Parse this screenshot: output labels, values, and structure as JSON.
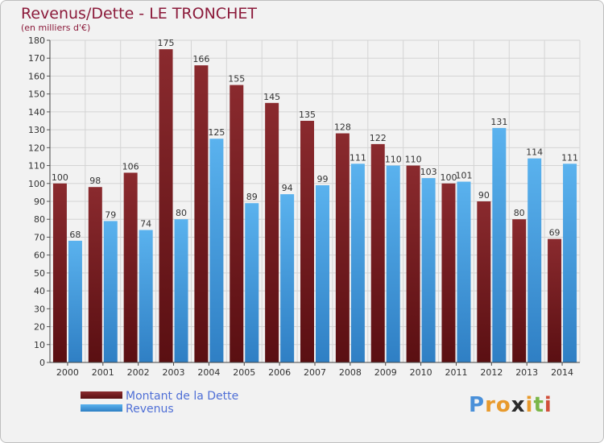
{
  "title": "Revenus/Dette - LE TRONCHET",
  "subtitle": "(en milliers d'€)",
  "colors": {
    "dette": "#7a1f23",
    "revenus": "#4aa3e6",
    "title": "#8b1a3a",
    "legend_text": "#4f6fd6"
  },
  "chart_data": {
    "type": "bar",
    "title": "Revenus/Dette - LE TRONCHET",
    "subtitle": "(en milliers d'€)",
    "categories": [
      "2000",
      "2001",
      "2002",
      "2003",
      "2004",
      "2005",
      "2006",
      "2007",
      "2008",
      "2009",
      "2010",
      "2011",
      "2012",
      "2013",
      "2014"
    ],
    "series": [
      {
        "name": "Montant de la Dette",
        "values": [
          100,
          98,
          106,
          175,
          166,
          155,
          145,
          135,
          128,
          122,
          110,
          100,
          90,
          80,
          69
        ]
      },
      {
        "name": "Revenus",
        "values": [
          68,
          79,
          74,
          80,
          125,
          89,
          94,
          99,
          111,
          110,
          103,
          101,
          131,
          114,
          111
        ]
      }
    ],
    "ylim": [
      0,
      180
    ],
    "yticks": [
      0,
      10,
      20,
      30,
      40,
      50,
      60,
      70,
      80,
      90,
      100,
      110,
      120,
      130,
      140,
      150,
      160,
      170,
      180
    ],
    "grid": true,
    "legend_position": "bottom-left"
  },
  "legend": {
    "items": [
      {
        "label": "Montant de la Dette",
        "swatch": "dette-swatch"
      },
      {
        "label": "Revenus",
        "swatch": "revenus-swatch"
      }
    ]
  },
  "logo": {
    "text": "Proxiti",
    "letters": [
      "P",
      "r",
      "o",
      "x",
      "i",
      "t",
      "i"
    ],
    "letter_colors": [
      "#4a90d9",
      "#e89a2c",
      "#e89a2c",
      "#2b2b2b",
      "#e89a2c",
      "#7ab648",
      "#d14f3a"
    ]
  }
}
